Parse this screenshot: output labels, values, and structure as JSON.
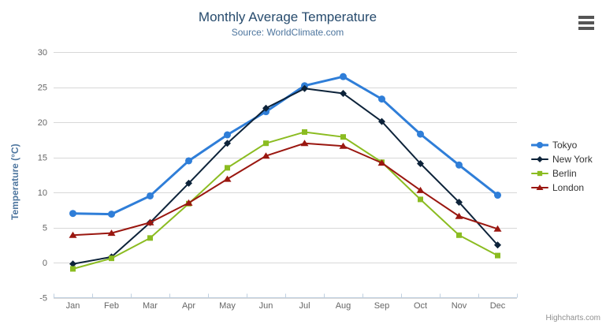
{
  "chart_data": {
    "type": "line",
    "title": "Monthly Average Temperature",
    "subtitle": "Source: WorldClimate.com",
    "ylabel": "Temperature (°C)",
    "xlabel": "",
    "categories": [
      "Jan",
      "Feb",
      "Mar",
      "Apr",
      "May",
      "Jun",
      "Jul",
      "Aug",
      "Sep",
      "Oct",
      "Nov",
      "Dec"
    ],
    "ylim": [
      -5,
      30
    ],
    "yticks": [
      -5,
      0,
      5,
      10,
      15,
      20,
      25,
      30
    ],
    "grid": "horizontal-only",
    "legend_position": "right",
    "series": [
      {
        "name": "Tokyo",
        "color": "#2f7ed8",
        "marker": "circle",
        "line_width": 3,
        "values": [
          7.0,
          6.9,
          9.5,
          14.5,
          18.2,
          21.5,
          25.2,
          26.5,
          23.3,
          18.3,
          13.9,
          9.6
        ]
      },
      {
        "name": "New York",
        "color": "#0d233a",
        "marker": "diamond",
        "line_width": 2,
        "values": [
          -0.2,
          0.8,
          5.7,
          11.3,
          17.0,
          22.0,
          24.8,
          24.1,
          20.1,
          14.1,
          8.6,
          2.5
        ]
      },
      {
        "name": "Berlin",
        "color": "#8bbc21",
        "marker": "square",
        "line_width": 2,
        "values": [
          -0.9,
          0.6,
          3.5,
          8.4,
          13.5,
          17.0,
          18.6,
          17.9,
          14.3,
          9.0,
          3.9,
          1.0
        ]
      },
      {
        "name": "London",
        "color": "#9a1710",
        "marker": "triangle",
        "line_width": 2,
        "values": [
          3.9,
          4.2,
          5.7,
          8.5,
          11.9,
          15.2,
          17.0,
          16.6,
          14.2,
          10.3,
          6.6,
          4.8
        ]
      }
    ],
    "axis_colors": {
      "grid": "#d8d8d8",
      "axis_line": "#c0d0e0",
      "tick_labels": "#666666",
      "y_title": "#4d759e"
    }
  },
  "header_colors": {
    "title": "#274b6d",
    "subtitle": "#4d759e"
  },
  "context_menu": {
    "icon": "hamburger-icon"
  },
  "credits": {
    "label": "Highcharts.com"
  }
}
